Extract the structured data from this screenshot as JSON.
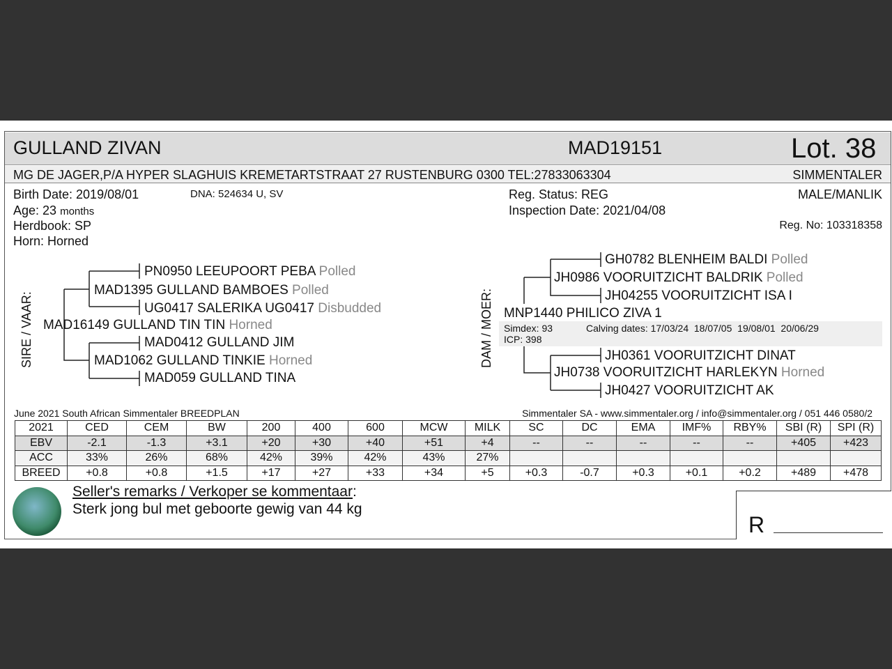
{
  "lot": {
    "name": "GULLAND ZIVAN",
    "reg_id": "MAD19151",
    "lot_label": "Lot. 38",
    "owner": "MG DE JAGER,P/A HYPER SLAGHUIS KREMETARTSTRAAT 27 RUSTENBURG 0300 TEL:27833063304",
    "breed": "SIMMENTALER",
    "birth_date": "Birth Date: 2019/08/01",
    "dna": "DNA: 524634 U, SV",
    "age_prefix": "Age: 23",
    "age_unit": "months",
    "herdbook": "Herdbook: SP",
    "horn": "Horn: Horned",
    "reg_status": "Reg. Status: REG",
    "inspection": "Inspection Date: 2021/04/08",
    "sex": "MALE/MANLIK",
    "reg_no": "Reg. No: 103318358"
  },
  "sire": {
    "label": "SIRE / VAAR:",
    "name": "MAD16149 GULLAND TIN TIN",
    "horn": "Horned",
    "ss": {
      "name": "MAD1395 GULLAND BAMBOES",
      "horn": "Polled"
    },
    "sss": {
      "name": "PN0950 LEEUPOORT PEBA",
      "horn": "Polled"
    },
    "ssd": {
      "name": "UG0417 SALERIKA UG0417",
      "horn": "Disbudded"
    },
    "sd": {
      "name": "MAD1062 GULLAND TINKIE",
      "horn": "Horned"
    },
    "sds": {
      "name": "MAD0412 GULLAND JIM"
    },
    "sdd": {
      "name": "MAD059 GULLAND TINA"
    }
  },
  "dam": {
    "label": "DAM / MOER:",
    "name": "MNP1440 PHILICO ZIVA 1",
    "simdex": "Simdex: 93",
    "icp": "ICP: 398",
    "calving": "Calving dates: 17/03/24  18/07/05  19/08/01  20/06/29",
    "ds": {
      "name": "JH0986 VOORUITZICHT BALDRIK",
      "horn": "Polled"
    },
    "dss": {
      "name": "GH0782 BLENHEIM BALDI",
      "horn": "Polled"
    },
    "dsd": {
      "name": "JH04255 VOORUITZICHT ISA I"
    },
    "dd": {
      "name": "JH0738 VOORUITZICHT HARLEKYN",
      "horn": "Horned"
    },
    "dds": {
      "name": "JH0361 VOORUITZICHT DINAT"
    },
    "ddd": {
      "name": "JH0427 VOORUITZICHT AK"
    }
  },
  "breedplan": {
    "title": "June 2021 South African Simmentaler BREEDPLAN",
    "contact": "Simmentaler SA - www.simmentaler.org / info@simmentaler.org / 051 446 0580/2",
    "rows": [
      [
        "2021",
        "CED",
        "CEM",
        "BW",
        "200",
        "400",
        "600",
        "MCW",
        "MILK",
        "SC",
        "DC",
        "EMA",
        "IMF%",
        "RBY%",
        "SBI (R)",
        "SPI (R)"
      ],
      [
        "EBV",
        "-2.1",
        "-1.3",
        "+3.1",
        "+20",
        "+30",
        "+40",
        "+51",
        "+4",
        "--",
        "--",
        "--",
        "--",
        "--",
        "+405",
        "+423"
      ],
      [
        "ACC",
        "33%",
        "26%",
        "68%",
        "42%",
        "39%",
        "42%",
        "43%",
        "27%",
        "",
        "",
        "",
        "",
        "",
        "",
        ""
      ],
      [
        "BREED",
        "+0.8",
        "+0.8",
        "+1.5",
        "+17",
        "+27",
        "+33",
        "+34",
        "+5",
        "+0.3",
        "-0.7",
        "+0.3",
        "+0.1",
        "+0.2",
        "+489",
        "+478"
      ]
    ]
  },
  "remarks": {
    "heading": "Seller's remarks / Verkoper se kommentaar",
    "colon": ":",
    "text": "Sterk jong bul met geboorte gewig van 44 kg"
  },
  "signature": {
    "label": "R"
  }
}
